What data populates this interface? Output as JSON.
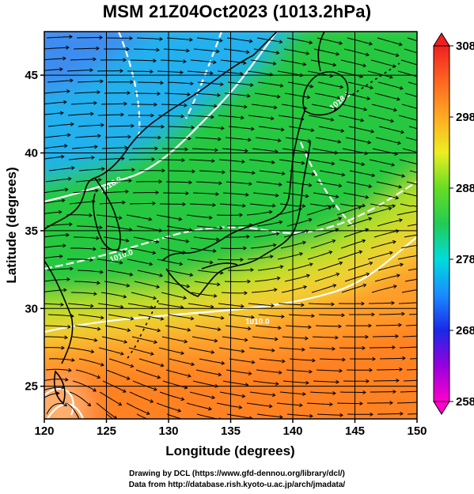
{
  "title": "MSM 21Z04Oct2023 (1013.2hPa)",
  "xaxis": {
    "label": "Longitude (degrees)",
    "range": [
      120,
      150
    ],
    "ticks": [
      "120",
      "125",
      "130",
      "135",
      "140",
      "145",
      "150"
    ]
  },
  "yaxis": {
    "label": "Latitude  (degrees)",
    "range": [
      22.9,
      47.8
    ],
    "ticks": [
      "25",
      "30",
      "35",
      "40",
      "45"
    ]
  },
  "colorbar": {
    "range": [
      258,
      308
    ],
    "ticks": [
      "258",
      "268",
      "278",
      "288",
      "298",
      "308"
    ]
  },
  "contour_labels": [
    "1018.0",
    "1010.0",
    "1010.0",
    "1018.0"
  ],
  "credits": {
    "line1": "Drawing by DCL (https://www.gfd-dennou.org/library/dcl/)",
    "line2": "Data from http://database.rish.kyoto-u.ac.jp/arch/jmadata/"
  },
  "colors": {
    "land_outline": "#000000",
    "isobar": "#ffffff",
    "streamline": "#000000"
  }
}
